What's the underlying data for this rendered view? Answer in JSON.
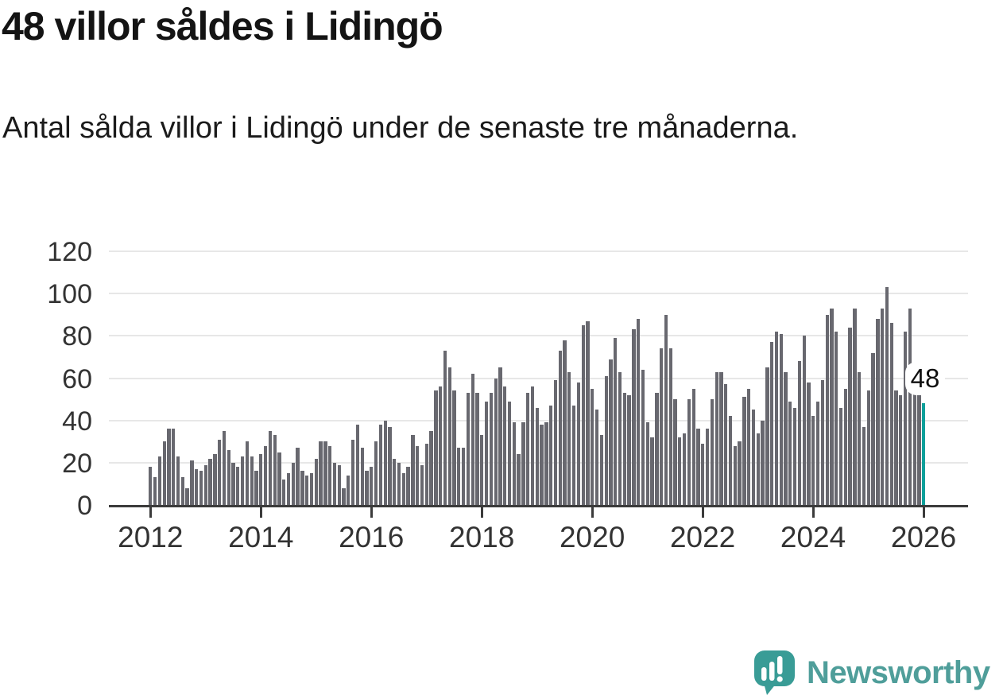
{
  "header": {
    "title": "48 villor såldes i Lidingö",
    "subtitle": "Antal sålda villor i Lidingö under de senaste tre månaderna."
  },
  "chart_data": {
    "type": "bar",
    "title": "48 villor såldes i Lidingö",
    "subtitle": "Antal sålda villor i Lidingö under de senaste tre månaderna.",
    "x_start": "2012-01",
    "x_end": "2026-01",
    "x_frequency": "monthly",
    "x_tick_labels": [
      "2012",
      "2014",
      "2016",
      "2018",
      "2020",
      "2022",
      "2024",
      "2026"
    ],
    "y_ticks": [
      0,
      20,
      40,
      60,
      80,
      100,
      120
    ],
    "ylim": [
      0,
      120
    ],
    "grid": true,
    "legend": "none",
    "bar_color": "#68686f",
    "highlight_color": "#0fa09b",
    "values": [
      18,
      13,
      23,
      30,
      36,
      36,
      23,
      13,
      8,
      21,
      17,
      16,
      19,
      22,
      24,
      31,
      35,
      26,
      20,
      18,
      23,
      30,
      23,
      16,
      24,
      28,
      35,
      33,
      25,
      12,
      15,
      20,
      27,
      16,
      14,
      15,
      22,
      30,
      30,
      28,
      20,
      19,
      8,
      14,
      31,
      38,
      27,
      16,
      18,
      30,
      38,
      40,
      37,
      22,
      20,
      15,
      18,
      33,
      28,
      19,
      29,
      35,
      54,
      56,
      73,
      65,
      54,
      27,
      27,
      53,
      62,
      53,
      33,
      49,
      53,
      60,
      65,
      56,
      49,
      39,
      24,
      39,
      53,
      56,
      46,
      38,
      39,
      47,
      59,
      73,
      78,
      63,
      47,
      58,
      85,
      87,
      55,
      45,
      33,
      61,
      69,
      79,
      63,
      53,
      52,
      83,
      88,
      64,
      39,
      32,
      53,
      74,
      90,
      74,
      50,
      32,
      34,
      50,
      55,
      36,
      29,
      36,
      50,
      63,
      63,
      57,
      42,
      28,
      30,
      51,
      55,
      45,
      34,
      40,
      65,
      77,
      82,
      81,
      63,
      49,
      46,
      68,
      80,
      58,
      42,
      49,
      59,
      90,
      93,
      82,
      46,
      55,
      84,
      93,
      63,
      37,
      54,
      72,
      88,
      93,
      103,
      86,
      54,
      52,
      82,
      93,
      66,
      52,
      48
    ],
    "highlight": {
      "index": 168,
      "value": 48,
      "label": "48"
    }
  },
  "footer": {
    "brand": "Newsworthy",
    "brand_color": "#4f9e9a",
    "logo": "newsworthy-speech-bubble-bar-chart-icon",
    "logo_color": "#399c96"
  }
}
